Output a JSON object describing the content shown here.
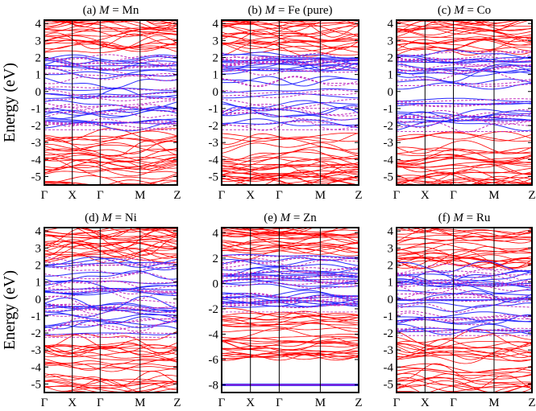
{
  "figure": {
    "ylabel": "Energy (eV)",
    "colors": {
      "red": "#ff0000",
      "blue": "#2a2aff",
      "magenta": "#c02cc0",
      "frame": "#000000"
    }
  },
  "chart_data": [
    {
      "type": "line",
      "title_prefix": "(a) ",
      "title_italic": "M",
      "title_suffix": " = Mn",
      "xlabels": [
        "Γ",
        "X",
        "Γ",
        "M",
        "Z"
      ],
      "ylim": [
        -5.5,
        4.2
      ],
      "yticks": [
        4,
        3,
        2,
        1,
        0,
        -1,
        -2,
        -3,
        -4,
        -5
      ],
      "ylabel": "Energy (eV)",
      "gap_top": -2.3,
      "conduction_min": 2.2,
      "deep_band": null
    },
    {
      "type": "line",
      "title_prefix": "(b) ",
      "title_italic": "M",
      "title_suffix": " = Fe (pure)",
      "xlabels": [
        "Γ",
        "X",
        "Γ",
        "M",
        "Z"
      ],
      "ylim": [
        -5.5,
        4.2
      ],
      "yticks": [
        4,
        3,
        2,
        1,
        0,
        -1,
        -2,
        -3,
        -4,
        -5
      ],
      "ylabel": "",
      "gap_top": -2.3,
      "conduction_min": 2.2,
      "deep_band": null
    },
    {
      "type": "line",
      "title_prefix": "(c) ",
      "title_italic": "M",
      "title_suffix": " = Co",
      "xlabels": [
        "Γ",
        "X",
        "Γ",
        "M",
        "Z"
      ],
      "ylim": [
        -5.5,
        4.2
      ],
      "yticks": [
        4,
        3,
        2,
        1,
        0,
        -1,
        -2,
        -3,
        -4,
        -5
      ],
      "ylabel": "",
      "gap_top": -2.4,
      "conduction_min": 2.4,
      "deep_band": null
    },
    {
      "type": "line",
      "title_prefix": "(d) ",
      "title_italic": "M",
      "title_suffix": " = Ni",
      "xlabels": [
        "Γ",
        "X",
        "Γ",
        "M",
        "Z"
      ],
      "ylim": [
        -5.5,
        4.2
      ],
      "yticks": [
        4,
        3,
        2,
        1,
        0,
        -1,
        -2,
        -3,
        -4,
        -5
      ],
      "ylabel": "Energy (eV)",
      "gap_top": -2.3,
      "conduction_min": 2.5,
      "deep_band": null
    },
    {
      "type": "line",
      "title_prefix": "(e) ",
      "title_italic": "M",
      "title_suffix": " = Zn",
      "xlabels": [
        "Γ",
        "X",
        "Γ",
        "M",
        "Z"
      ],
      "ylim": [
        -8.6,
        4.4
      ],
      "yticks": [
        4,
        2,
        0,
        -2,
        -4,
        -6,
        -8
      ],
      "ylabel": "",
      "gap_top": -2.3,
      "conduction_min": 2.3,
      "deep_band": -8.0
    },
    {
      "type": "line",
      "title_prefix": "(f) ",
      "title_italic": "M",
      "title_suffix": " = Ru",
      "xlabels": [
        "Γ",
        "X",
        "Γ",
        "M",
        "Z"
      ],
      "ylim": [
        -5.5,
        4.2
      ],
      "yticks": [
        4,
        3,
        2,
        1,
        0,
        -1,
        -2,
        -3,
        -4,
        -5
      ],
      "ylabel": "",
      "gap_top": -2.2,
      "conduction_min": 2.0,
      "deep_band": null
    }
  ]
}
